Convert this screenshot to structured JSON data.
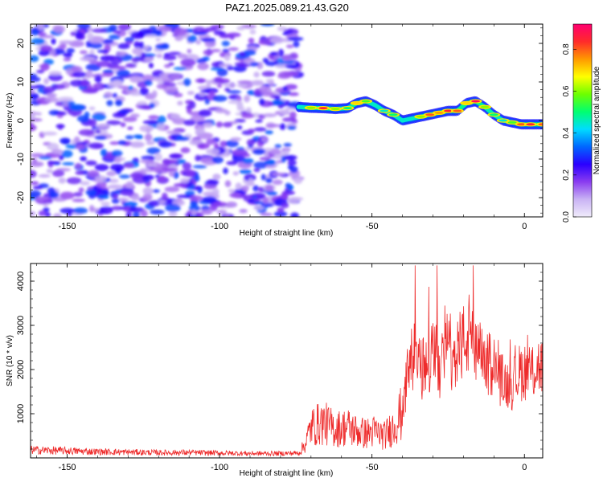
{
  "title": "PAZ1.2025.089.21.43.G20",
  "chart_data": [
    {
      "type": "heatmap",
      "panel": "top",
      "xlabel": "Height of straight line (km)",
      "ylabel": "Frequency (Hz)",
      "xlim": [
        -162,
        6
      ],
      "ylim": [
        -25,
        25
      ],
      "xticks": [
        -150,
        -100,
        -50,
        0
      ],
      "yticks": [
        -20,
        -10,
        0,
        10,
        20
      ],
      "grid": false,
      "colorbar": {
        "label": "Normalized spectral amplitude",
        "range": [
          0,
          0.92
        ],
        "ticks": [
          0.0,
          0.2,
          0.4,
          0.6,
          0.8
        ],
        "colormap": [
          "#f0ecfb",
          "#c9b3f4",
          "#8a3cf0",
          "#2a00ff",
          "#0066ff",
          "#00dcff",
          "#00ff70",
          "#6dff00",
          "#ffff00",
          "#ff9900",
          "#ff2a2a",
          "#ff0070"
        ]
      },
      "noise_region": {
        "x": [
          -162,
          -74
        ],
        "y": [
          -25,
          25
        ],
        "amplitude_range": [
          0.0,
          0.25
        ]
      },
      "signal_ridge": {
        "x": [
          -74,
          -70,
          -66,
          -62,
          -58,
          -55,
          -52,
          -49,
          -46,
          -43,
          -40,
          -37,
          -34,
          -31,
          -28,
          -25,
          -22,
          -19,
          -16,
          -13,
          -10,
          -7,
          -4,
          -1,
          2,
          6
        ],
        "frequency": [
          3.5,
          3.3,
          3.2,
          3.0,
          3.2,
          4.5,
          5.0,
          4.0,
          2.5,
          1.5,
          0.0,
          0.5,
          1.0,
          1.5,
          2.0,
          2.5,
          2.5,
          4.5,
          5.0,
          3.5,
          1.5,
          0.0,
          -0.5,
          -1.0,
          -1.0,
          -1.0
        ],
        "amplitude": [
          0.3,
          0.6,
          0.85,
          0.6,
          0.5,
          0.7,
          0.55,
          0.4,
          0.45,
          0.5,
          0.35,
          0.4,
          0.6,
          0.8,
          0.75,
          0.85,
          0.8,
          0.7,
          0.9,
          0.6,
          0.5,
          0.45,
          0.55,
          0.8,
          0.85,
          0.8
        ]
      }
    },
    {
      "type": "line",
      "panel": "bottom",
      "xlabel": "Height of straight line (km)",
      "ylabel": "SNR (10 * v/v)",
      "xlim": [
        -162,
        6
      ],
      "ylim": [
        0,
        4400
      ],
      "xticks": [
        -150,
        -100,
        -50,
        0
      ],
      "yticks": [
        1000,
        2000,
        3000,
        4000
      ],
      "grid": false,
      "series": [
        {
          "color": "#ee2b2b",
          "x": [
            -162,
            -150,
            -140,
            -130,
            -120,
            -110,
            -100,
            -90,
            -80,
            -74,
            -72,
            -70,
            -66,
            -62,
            -58,
            -55,
            -52,
            -49,
            -46,
            -43,
            -41,
            -40,
            -38,
            -36,
            -34,
            -32,
            -30,
            -28,
            -26,
            -24,
            -22,
            -20,
            -18,
            -16,
            -14,
            -12,
            -10,
            -8,
            -6,
            -4,
            -2,
            0,
            2,
            4,
            6
          ],
          "y": [
            180,
            160,
            140,
            130,
            120,
            120,
            110,
            100,
            100,
            110,
            300,
            700,
            800,
            650,
            700,
            600,
            550,
            600,
            500,
            700,
            950,
            1000,
            2050,
            2300,
            2000,
            2100,
            2300,
            2100,
            2600,
            2300,
            2500,
            2600,
            2800,
            2300,
            2300,
            2100,
            2150,
            1800,
            1700,
            1650,
            1900,
            2000,
            1900,
            2100,
            2050
          ]
        }
      ]
    }
  ]
}
